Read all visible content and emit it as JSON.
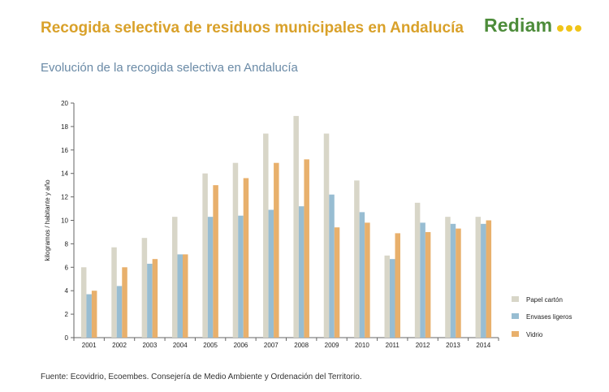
{
  "header": {
    "title": "Recogida selectiva de residuos municipales en Andalucía",
    "logo_text": "Rediam"
  },
  "subtitle": "Evolución de la recogida selectiva en Andalucía",
  "source": "Fuente: Ecovidrio, Ecoembes. Consejería de Medio Ambiente y Ordenación del Territorio.",
  "colors": {
    "title": "#d9a12a",
    "logo": "#4d8c3a",
    "logo_dots": "#f0c418",
    "subtitle": "#6a8aa6"
  },
  "chart_data": {
    "type": "bar",
    "title": "Evolución de la recogida selectiva en Andalucía",
    "ylabel": "kilogramos / habitante y año",
    "xlabel": "",
    "ylim": [
      0,
      20
    ],
    "yticks": [
      0,
      2,
      4,
      6,
      8,
      10,
      12,
      14,
      16,
      18,
      20
    ],
    "grid": false,
    "legend_position": "bottom-right",
    "categories": [
      "2001",
      "2002",
      "2003",
      "2004",
      "2005",
      "2006",
      "2007",
      "2008",
      "2009",
      "2010",
      "2011",
      "2012",
      "2013",
      "2014"
    ],
    "series": [
      {
        "name": "Papel cartón",
        "color": "#d8d6c8",
        "values": [
          6.0,
          7.7,
          8.5,
          10.3,
          14.0,
          14.9,
          17.4,
          18.9,
          17.4,
          13.4,
          7.0,
          11.5,
          10.3,
          10.3
        ]
      },
      {
        "name": "Envases ligeros",
        "color": "#98bdd2",
        "values": [
          3.7,
          4.4,
          6.3,
          7.1,
          10.3,
          10.4,
          10.9,
          11.2,
          12.2,
          10.7,
          6.7,
          9.8,
          9.7,
          9.7
        ]
      },
      {
        "name": "Vidrio",
        "color": "#e8b06c",
        "values": [
          4.0,
          6.0,
          6.7,
          7.1,
          13.0,
          13.6,
          14.9,
          15.2,
          9.4,
          9.8,
          8.9,
          9.0,
          9.3,
          10.0
        ]
      }
    ]
  }
}
